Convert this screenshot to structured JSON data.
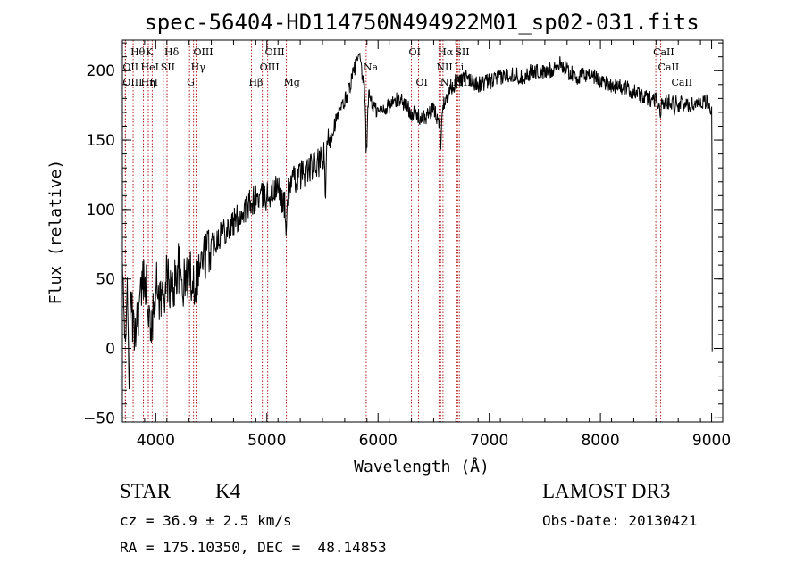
{
  "chart_data": {
    "type": "line",
    "title": "spec-56404-HD114750N494922M01_sp02-031.fits",
    "xlabel": "Wavelength (Å)",
    "ylabel": "Flux (relative)",
    "xlim": [
      3700,
      9100
    ],
    "ylim": [
      -53,
      222
    ],
    "xticks": [
      4000,
      5000,
      6000,
      7000,
      8000,
      9000
    ],
    "yticks": [
      -50,
      0,
      50,
      100,
      150,
      200
    ],
    "anchors": {
      "x": [
        3700,
        3720,
        3740,
        3760,
        3780,
        3800,
        3850,
        3900,
        3950,
        4000,
        4050,
        4100,
        4150,
        4200,
        4250,
        4300,
        4350,
        4400,
        4500,
        4600,
        4700,
        4800,
        4860,
        4900,
        5000,
        5100,
        5170,
        5200,
        5300,
        5400,
        5500,
        5550,
        5600,
        5700,
        5750,
        5800,
        5830,
        5850,
        5880,
        5900,
        5920,
        5950,
        6000,
        6100,
        6200,
        6300,
        6400,
        6500,
        6560,
        6600,
        6700,
        6800,
        6900,
        7000,
        7100,
        7200,
        7300,
        7400,
        7500,
        7600,
        7650,
        7700,
        7800,
        7900,
        8000,
        8100,
        8200,
        8300,
        8400,
        8500,
        8540,
        8600,
        8660,
        8700,
        8800,
        8900,
        8950,
        9000,
        9005
      ],
      "y": [
        60,
        0,
        45,
        -20,
        40,
        10,
        30,
        55,
        20,
        45,
        35,
        50,
        40,
        60,
        45,
        55,
        48,
        60,
        75,
        85,
        90,
        100,
        105,
        108,
        110,
        115,
        100,
        118,
        125,
        130,
        135,
        150,
        160,
        178,
        190,
        205,
        210,
        200,
        185,
        160,
        185,
        175,
        170,
        175,
        180,
        170,
        165,
        172,
        160,
        180,
        192,
        195,
        190,
        192,
        195,
        198,
        195,
        200,
        198,
        203,
        205,
        200,
        195,
        198,
        193,
        190,
        188,
        185,
        180,
        180,
        175,
        178,
        178,
        176,
        175,
        178,
        178,
        172,
        110
      ]
    },
    "dips": [
      {
        "x": 3933,
        "depth": 25
      },
      {
        "x": 3968,
        "depth": 25
      },
      {
        "x": 4861,
        "depth": 12
      },
      {
        "x": 5172,
        "depth": 22
      },
      {
        "x": 5528,
        "depth": 45
      },
      {
        "x": 5893,
        "depth": 30
      },
      {
        "x": 6563,
        "depth": 15
      },
      {
        "x": 8542,
        "depth": 8
      },
      {
        "x": 8662,
        "depth": 8
      }
    ],
    "lines": [
      {
        "x": 3797,
        "label": "Hθ",
        "row": 0
      },
      {
        "x": 3727,
        "label": "OII",
        "row": 1
      },
      {
        "x": 3727,
        "label": "OIII",
        "row": 2
      },
      {
        "x": 3889,
        "label": "Hη",
        "row": 2
      },
      {
        "x": 3933,
        "label": "K",
        "row": 0
      },
      {
        "x": 3968,
        "label": "H",
        "row": 2
      },
      {
        "x": 3889,
        "label": "HeI",
        "row": 1
      },
      {
        "x": 4068,
        "label": "SII",
        "row": 1
      },
      {
        "x": 4102,
        "label": "Hδ",
        "row": 0
      },
      {
        "x": 4363,
        "label": "OIII",
        "row": 0
      },
      {
        "x": 4340,
        "label": "Hγ",
        "row": 1
      },
      {
        "x": 4304,
        "label": "G",
        "row": 2
      },
      {
        "x": 5007,
        "label": "OIII",
        "row": 0
      },
      {
        "x": 4959,
        "label": "OIII",
        "row": 1
      },
      {
        "x": 4861,
        "label": "Hβ",
        "row": 2
      },
      {
        "x": 5175,
        "label": "Mg",
        "row": 2
      },
      {
        "x": 5893,
        "label": "Na",
        "row": 1
      },
      {
        "x": 6300,
        "label": "OI",
        "row": 0
      },
      {
        "x": 6364,
        "label": "OI",
        "row": 2
      },
      {
        "x": 6563,
        "label": "Hα",
        "row": 0
      },
      {
        "x": 6548,
        "label": "NII",
        "row": 1
      },
      {
        "x": 6584,
        "label": "NII",
        "row": 2
      },
      {
        "x": 6716,
        "label": "SII",
        "row": 0
      },
      {
        "x": 6708,
        "label": "Li",
        "row": 1
      },
      {
        "x": 6731,
        "label": "SII",
        "row": 2
      },
      {
        "x": 8498,
        "label": "CaII",
        "row": 0
      },
      {
        "x": 8542,
        "label": "CaII",
        "row": 1
      },
      {
        "x": 8662,
        "label": "CaII",
        "row": 2
      }
    ]
  },
  "info": {
    "object_type": "STAR",
    "subclass": "K4",
    "survey": "LAMOST DR3",
    "redshift": "cz = 36.9 ± 2.5 km/s",
    "obs_date": "Obs-Date: 20130421",
    "coords": "RA = 175.10350, DEC =  48.14853"
  }
}
